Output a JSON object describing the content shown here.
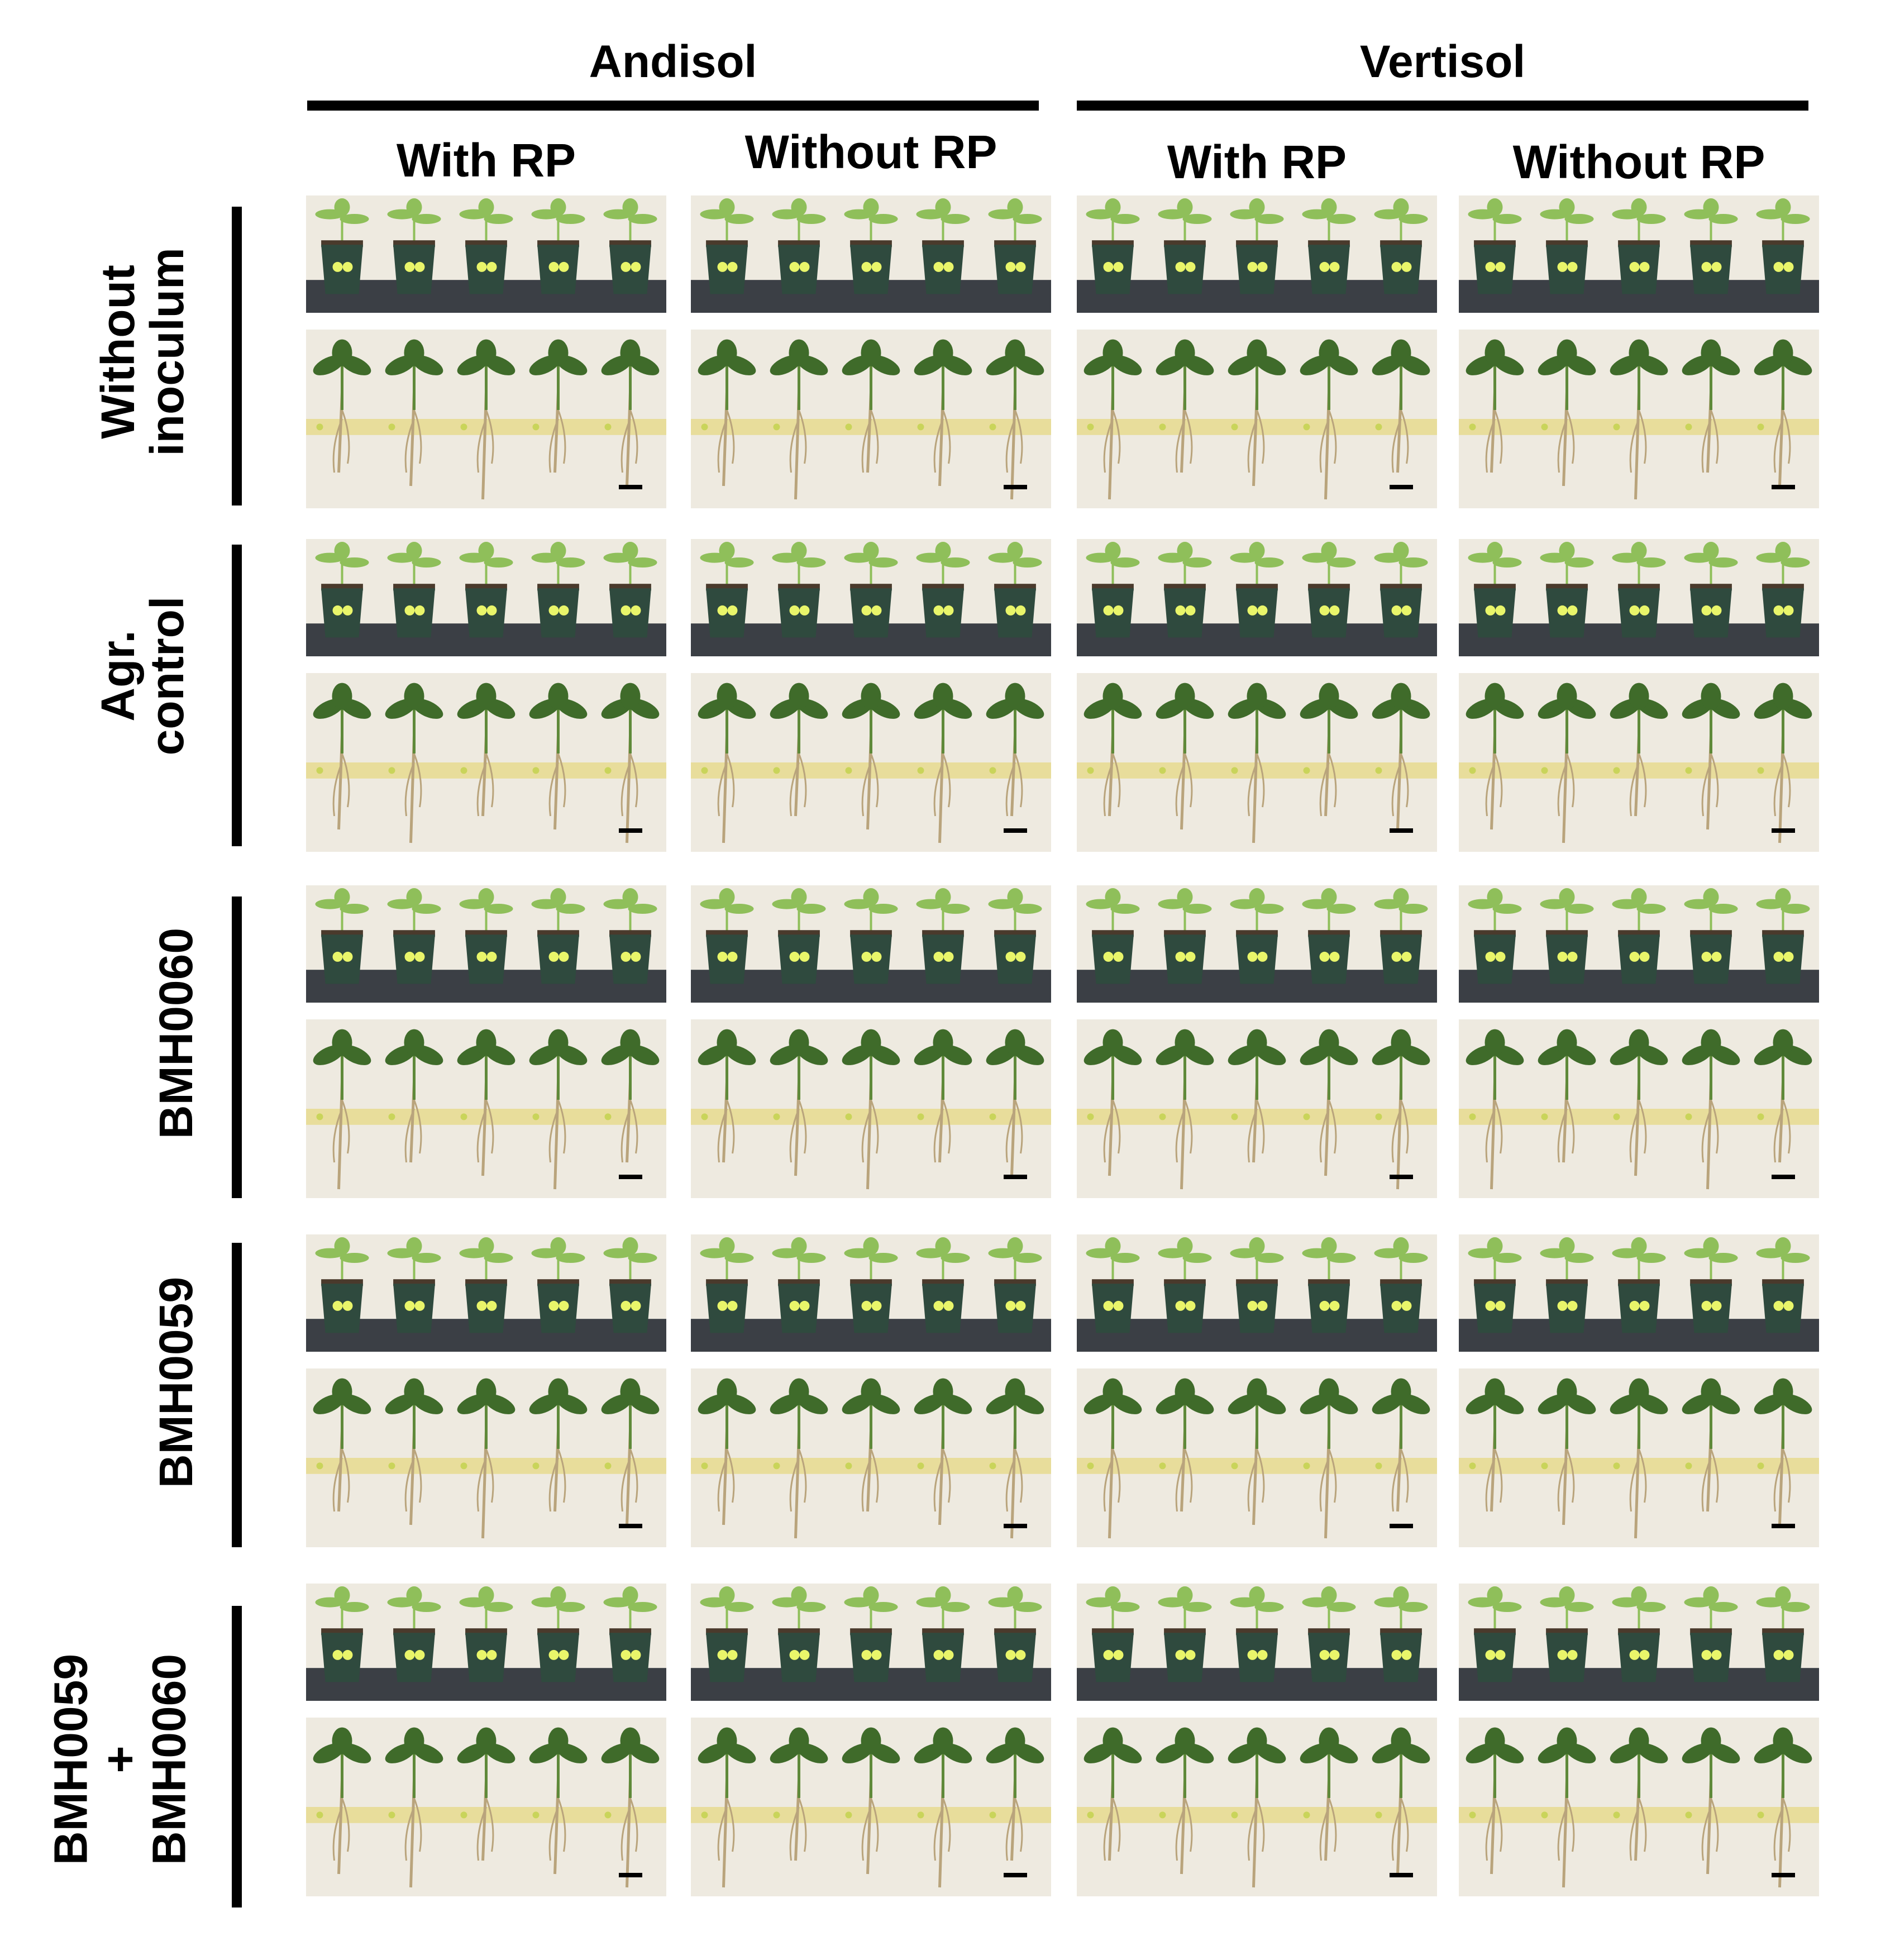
{
  "soils": [
    "Andisol",
    "Vertisol"
  ],
  "columns": [
    "With RP",
    "Without RP",
    "With RP",
    "Without RP"
  ],
  "rows": [
    {
      "lines": [
        "Without",
        "inoculum"
      ]
    },
    {
      "lines": [
        "Agr.",
        "control"
      ]
    },
    {
      "lines": [
        "BMH0060"
      ]
    },
    {
      "lines": [
        "BMH0059"
      ]
    },
    {
      "lines": [
        "BMH0059",
        "+",
        "BMH0060"
      ]
    }
  ],
  "photo_types": [
    "pot-photo",
    "root-photo"
  ],
  "colors": {
    "bench": "#3b3f45",
    "wall": "#eeeae0",
    "pot": "#2f4a3e",
    "leaf": "#3f6b2a",
    "leaf_light": "#8fbf5a",
    "root": "#b9a47c",
    "tape": "#e6d98a",
    "tag": "#e9f56a"
  }
}
